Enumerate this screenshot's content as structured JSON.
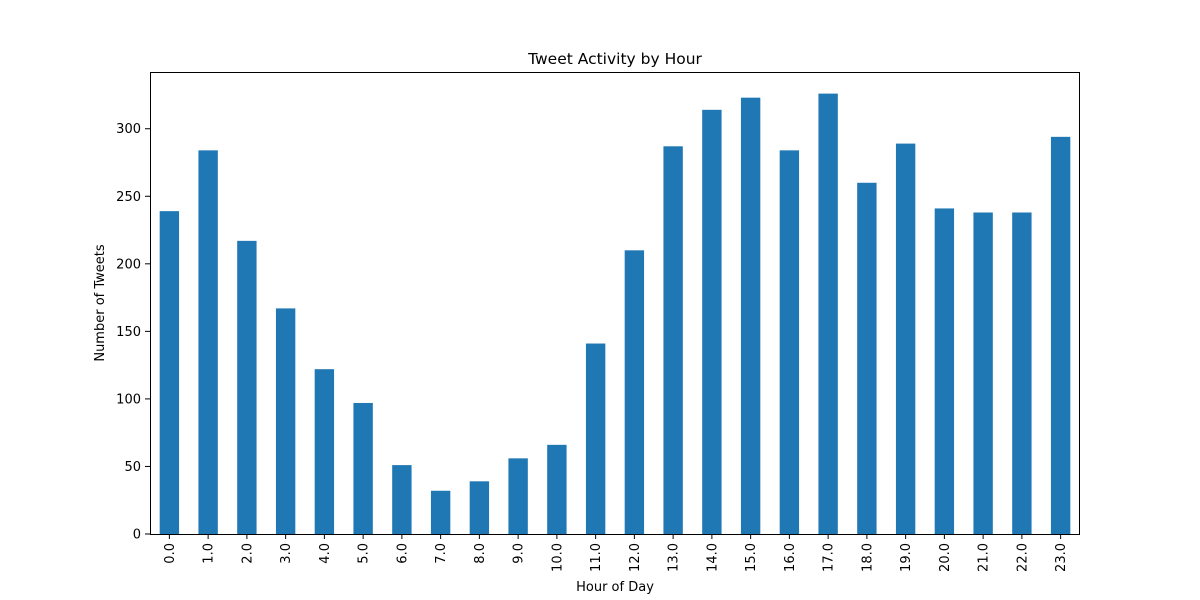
{
  "chart_data": {
    "type": "bar",
    "title": "Tweet Activity by Hour",
    "xlabel": "Hour of Day",
    "ylabel": "Number of Tweets",
    "categories": [
      "0.0",
      "1.0",
      "2.0",
      "3.0",
      "4.0",
      "5.0",
      "6.0",
      "7.0",
      "8.0",
      "9.0",
      "10.0",
      "11.0",
      "12.0",
      "13.0",
      "14.0",
      "15.0",
      "16.0",
      "17.0",
      "18.0",
      "19.0",
      "20.0",
      "21.0",
      "22.0",
      "23.0"
    ],
    "values": [
      239,
      284,
      217,
      167,
      122,
      97,
      51,
      32,
      39,
      56,
      66,
      141,
      210,
      287,
      314,
      323,
      284,
      326,
      260,
      289,
      241,
      238,
      238,
      294
    ],
    "ylim": [
      0,
      342
    ],
    "yticks": [
      0,
      50,
      100,
      150,
      200,
      250,
      300
    ],
    "bar_color": "#1f77b4",
    "grid": false,
    "legend": "none"
  }
}
